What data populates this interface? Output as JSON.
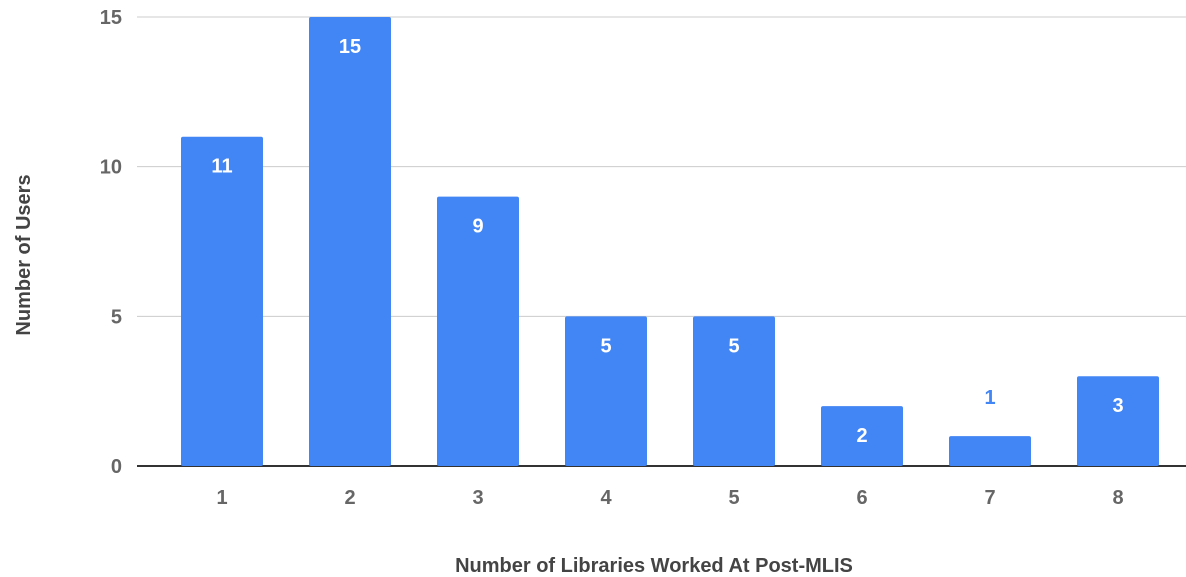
{
  "chart_data": {
    "type": "bar",
    "categories": [
      "1",
      "2",
      "3",
      "4",
      "5",
      "6",
      "7",
      "8"
    ],
    "values": [
      11,
      15,
      9,
      5,
      5,
      2,
      1,
      3
    ],
    "title": "",
    "xlabel": "Number of Libraries Worked At Post-MLIS",
    "ylabel": "Number of Users",
    "ylim": [
      0,
      15
    ],
    "yticks": [
      0,
      5,
      10,
      15
    ],
    "grid": true,
    "legend": "none",
    "data_labels": true
  },
  "colors": {
    "bar": "#4285F4",
    "data_label_inside": "#ffffff",
    "data_label_outside": "#4285F4",
    "gridline": "#cccccc",
    "baseline": "#333333"
  }
}
